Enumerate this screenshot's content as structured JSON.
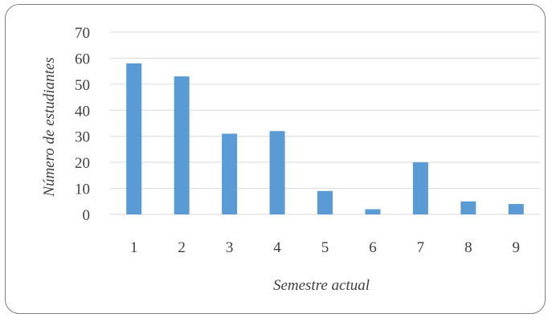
{
  "chart_data": {
    "type": "bar",
    "title": "",
    "xlabel": "Semestre actual",
    "ylabel": "Número de estudiantes",
    "categories": [
      "1",
      "2",
      "3",
      "4",
      "5",
      "6",
      "7",
      "8",
      "9"
    ],
    "values": [
      58,
      53,
      31,
      32,
      9,
      2,
      20,
      5,
      4
    ],
    "ylim": [
      0,
      70
    ],
    "yticks": [
      0,
      10,
      20,
      30,
      40,
      50,
      60,
      70
    ],
    "grid": true,
    "legend": "none",
    "bar_color": "#5b9bd5",
    "grid_color": "#d9d9d9"
  }
}
